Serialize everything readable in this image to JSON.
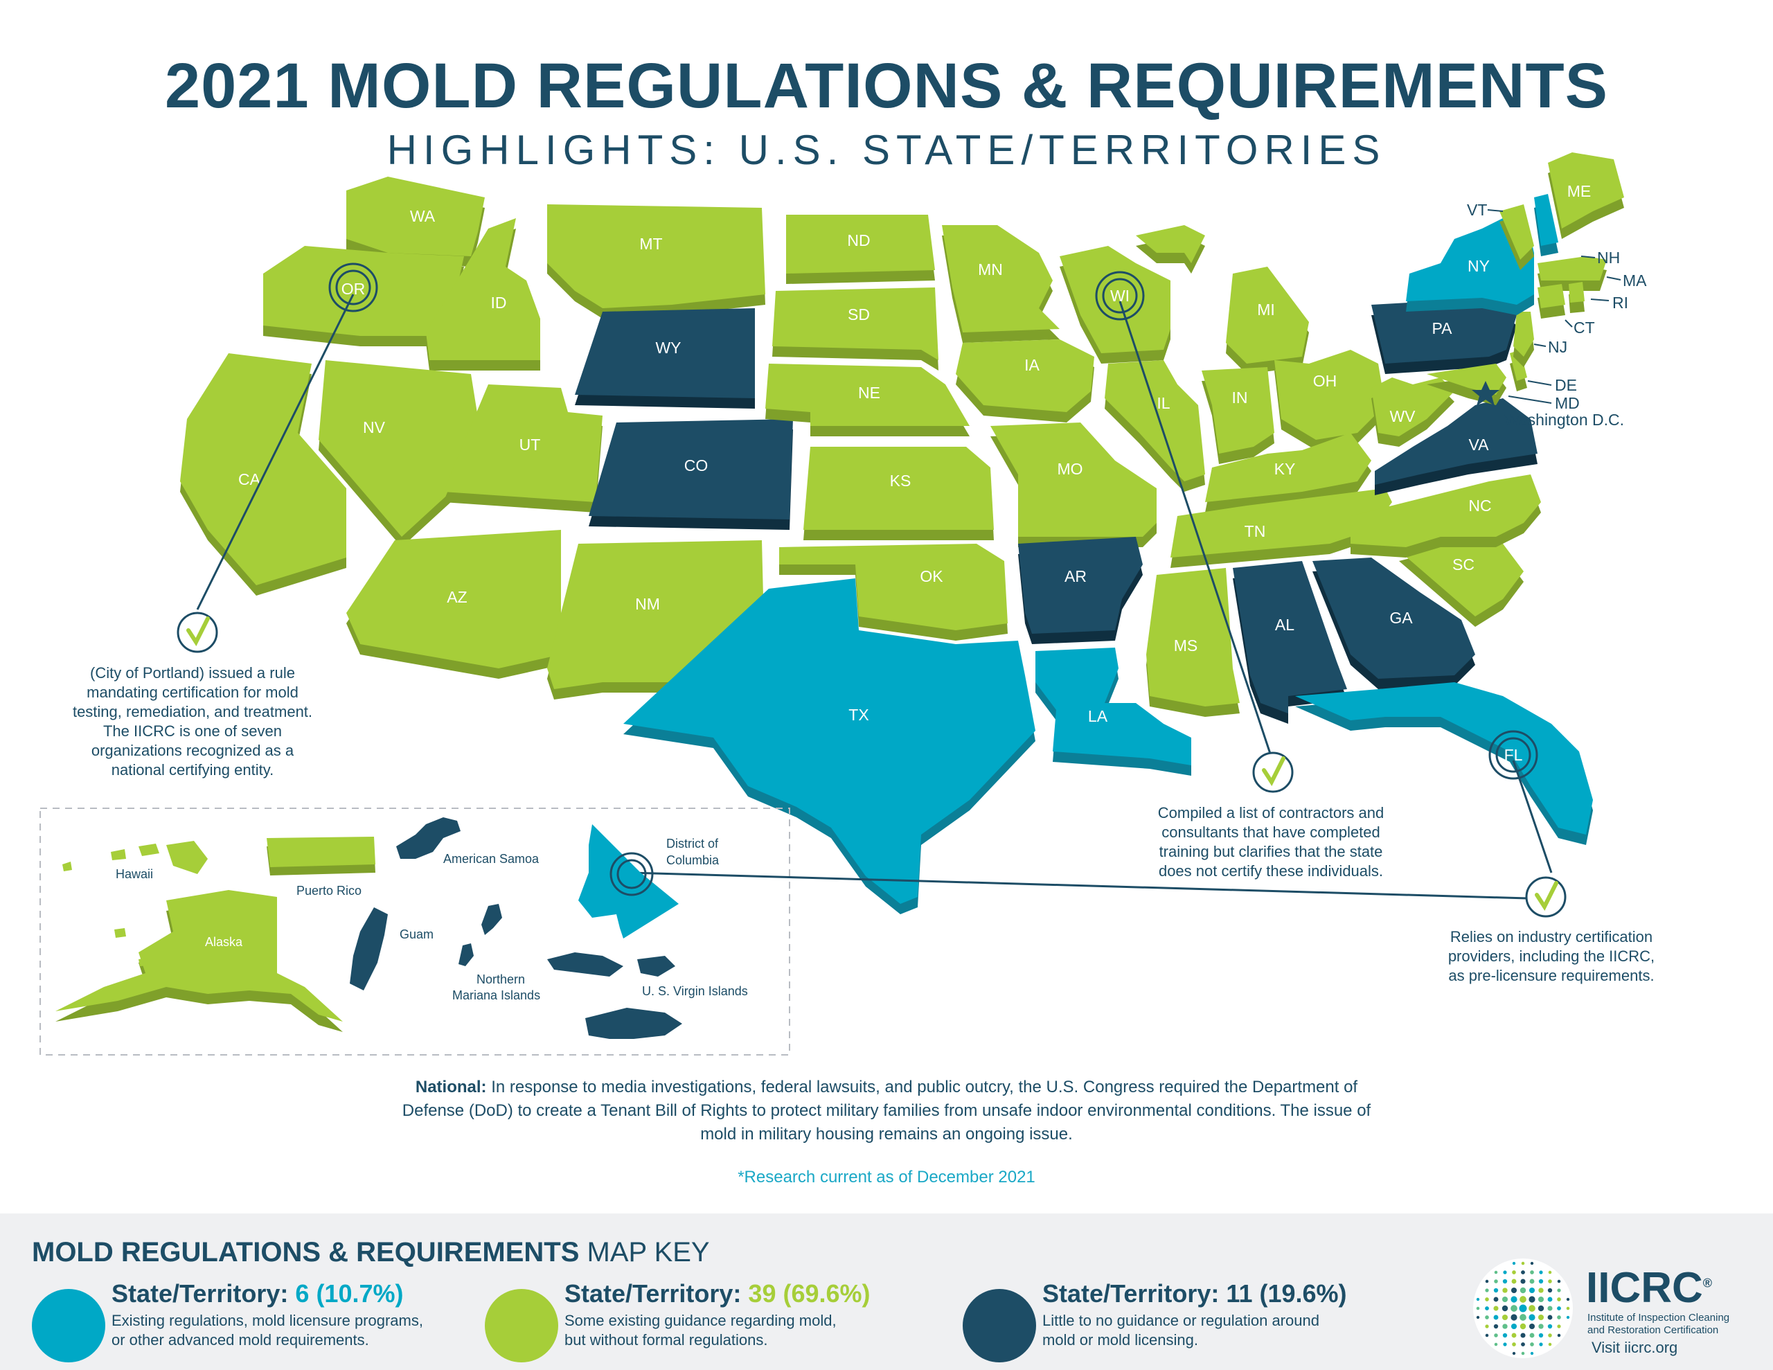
{
  "header": {
    "title": "2021 MOLD REGULATIONS & REQUIREMENTS",
    "subtitle": "HIGHLIGHTS: U.S. STATE/TERRITORIES"
  },
  "colors": {
    "advanced": "#00a8c6",
    "guidance": "#a6ce39",
    "none": "#1d4d66"
  },
  "states": {
    "WA": "WA",
    "OR": "OR",
    "CA": "CA",
    "ID": "ID",
    "NV": "NV",
    "UT": "UT",
    "AZ": "AZ",
    "MT": "MT",
    "WY": "WY",
    "CO": "CO",
    "NM": "NM",
    "ND": "ND",
    "SD": "SD",
    "NE": "NE",
    "KS": "KS",
    "OK": "OK",
    "TX": "TX",
    "MN": "MN",
    "IA": "IA",
    "MO": "MO",
    "AR": "AR",
    "LA": "LA",
    "WI": "WI",
    "IL": "IL",
    "MS": "MS",
    "MI": "MI",
    "IN": "IN",
    "OH": "OH",
    "KY": "KY",
    "TN": "TN",
    "AL": "AL",
    "GA": "GA",
    "FL": "FL",
    "SC": "SC",
    "NC": "NC",
    "VA": "VA",
    "WV": "WV",
    "PA": "PA",
    "NY": "NY",
    "ME": "ME",
    "VT": "VT",
    "NH": "NH",
    "MA": "MA",
    "RI": "RI",
    "CT": "CT",
    "NJ": "NJ",
    "DE": "DE",
    "MD": "MD",
    "DC": "Washington D.C."
  },
  "territories": {
    "hawaii": "Hawaii",
    "alaska": "Alaska",
    "puerto_rico": "Puerto Rico",
    "american_samoa": "American Samoa",
    "guam": "Guam",
    "northern_mariana_1": "Northern",
    "northern_mariana_2": "Mariana Islands",
    "usvi": "U. S. Virgin Islands",
    "dc_1": "District of",
    "dc_2": "Columbia"
  },
  "callouts": {
    "oregon": [
      "(City of Portland) issued a rule",
      "mandating certification for mold",
      "testing, remediation, and treatment.",
      "The IICRC is one of seven",
      "organizations recognized as a",
      "national certifying entity."
    ],
    "wisconsin": [
      "Compiled a list of contractors and",
      "consultants that have completed",
      "training but clarifies that the state",
      "does not certify these individuals."
    ],
    "florida": [
      "Relies on industry certification",
      "providers, including the IICRC,",
      "as pre-licensure requirements."
    ]
  },
  "national": {
    "label": "National:",
    "text": "In response to media investigations, federal lawsuits, and public outcry, the U.S. Congress required the Department of Defense (DoD) to create a Tenant Bill of Rights to protect military families from unsafe indoor environmental conditions. The issue of mold in military housing remains an ongoing issue."
  },
  "research_note": "*Research current as of December 2021",
  "key": {
    "title_bold": "MOLD REGULATIONS & REQUIREMENTS",
    "title_light": "MAP KEY",
    "items": [
      {
        "head": "State/Territory:",
        "count": "6 (10.7%)",
        "desc1": "Existing regulations, mold licensure programs,",
        "desc2": "or other advanced mold requirements.",
        "color": "#00a8c6",
        "count_color": "#00a8c6"
      },
      {
        "head": "State/Territory:",
        "count": "39 (69.6%)",
        "desc1": "Some existing guidance regarding mold,",
        "desc2": "but without formal regulations.",
        "color": "#a6ce39",
        "count_color": "#a6ce39"
      },
      {
        "head": "State/Territory:",
        "count": "11 (19.6%)",
        "desc1": "Little to no guidance or regulation around",
        "desc2": "mold or mold licensing.",
        "color": "#1d4d66",
        "count_color": "#1d4d66"
      }
    ]
  },
  "logo": {
    "name": "IICRC",
    "reg": "®",
    "sub1": "Institute of Inspection Cleaning",
    "sub2": "and Restoration Certification",
    "url": "Visit iicrc.org"
  }
}
